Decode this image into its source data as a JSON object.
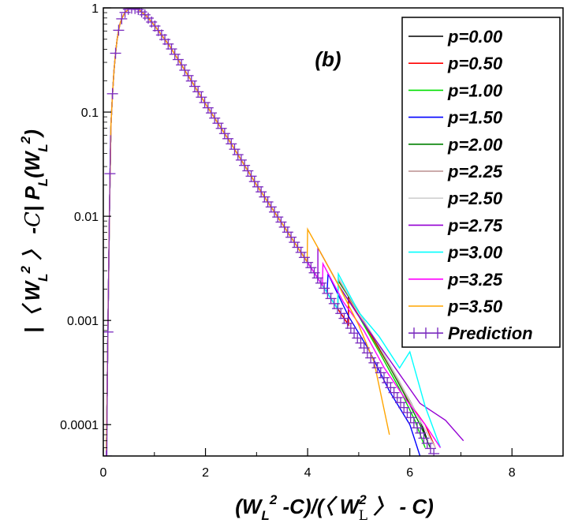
{
  "chart_data": {
    "type": "line",
    "panel_label": "(b)",
    "xlim": [
      0,
      9
    ],
    "ylim": [
      5e-05,
      1
    ],
    "yscale": "log",
    "x_ticks": [
      0,
      2,
      4,
      6,
      8
    ],
    "x_tick_labels": [
      "0",
      "2",
      "4",
      "6",
      "8"
    ],
    "y_ticks": [
      0.0001,
      0.001,
      0.01,
      0.1,
      1
    ],
    "y_tick_labels": [
      "0.0001",
      "0.001",
      "0.01",
      "0.1",
      "1"
    ],
    "legend_position": "top-right",
    "series": [
      {
        "name": "p=0.00",
        "color": "#000000",
        "tail_x": [
          4.8,
          5.2,
          5.6,
          6.0,
          6.2,
          6.35
        ],
        "tail_y": [
          0.0018,
          0.00082,
          0.00038,
          0.00017,
          0.00011,
          7e-05
        ]
      },
      {
        "name": "p=0.50",
        "color": "#ff0000",
        "tail_x": [
          4.8,
          5.2,
          5.6,
          6.0,
          6.3,
          6.5
        ],
        "tail_y": [
          0.0016,
          0.00078,
          0.00036,
          0.00016,
          0.0001,
          6e-05
        ]
      },
      {
        "name": "p=1.00",
        "color": "#00e000",
        "tail_x": [
          4.6,
          5.0,
          5.4,
          5.8,
          6.1,
          6.3
        ],
        "tail_y": [
          0.0022,
          0.0011,
          0.0005,
          0.00022,
          0.00011,
          6e-05
        ]
      },
      {
        "name": "p=1.50",
        "color": "#0000ff",
        "tail_x": [
          4.4,
          4.8,
          5.2,
          5.6,
          6.0,
          6.2
        ],
        "tail_y": [
          0.0028,
          0.0011,
          0.00052,
          0.00021,
          0.0001,
          5e-05
        ]
      },
      {
        "name": "p=2.00",
        "color": "#008000",
        "tail_x": [
          4.6,
          5.0,
          5.4,
          5.8,
          6.2,
          6.4
        ],
        "tail_y": [
          0.0024,
          0.0012,
          0.00055,
          0.00024,
          0.0001,
          6e-05
        ]
      },
      {
        "name": "p=2.25",
        "color": "#bc8f8f",
        "tail_x": [
          4.6,
          5.0,
          5.4,
          5.8,
          6.2,
          6.5
        ],
        "tail_y": [
          0.0025,
          0.0012,
          0.00056,
          0.00025,
          0.00011,
          6e-05
        ]
      },
      {
        "name": "p=2.50",
        "color": "#d0d0d0",
        "tail_x": [
          4.6,
          5.0,
          5.4,
          5.8,
          6.2,
          6.5
        ],
        "tail_y": [
          0.0026,
          0.0012,
          0.00057,
          0.00026,
          0.00011,
          6e-05
        ]
      },
      {
        "name": "p=2.75",
        "color": "#9400d3",
        "tail_x": [
          4.2,
          4.6,
          5.0,
          5.6,
          6.2,
          6.7,
          7.05
        ],
        "tail_y": [
          0.005,
          0.0022,
          0.0011,
          0.00042,
          0.00016,
          0.00011,
          7e-05
        ]
      },
      {
        "name": "p=3.00",
        "color": "#00ffff",
        "tail_x": [
          4.6,
          5.0,
          5.4,
          5.8,
          6.0,
          6.3,
          6.6
        ],
        "tail_y": [
          0.0028,
          0.0012,
          0.0007,
          0.00035,
          0.0005,
          0.00015,
          6e-05
        ]
      },
      {
        "name": "p=3.25",
        "color": "#ff00ff",
        "tail_x": [
          4.3,
          4.7,
          5.1,
          5.5,
          5.9,
          6.3,
          6.6
        ],
        "tail_y": [
          0.0035,
          0.0015,
          0.0008,
          0.00035,
          0.00018,
          0.0001,
          6e-05
        ]
      },
      {
        "name": "p=3.50",
        "color": "#ffa500",
        "tail_x": [
          4.0,
          4.2,
          4.6,
          5.0,
          5.3,
          5.6
        ],
        "tail_y": [
          0.0075,
          0.005,
          0.0022,
          0.0009,
          0.0004,
          8e-05
        ]
      },
      {
        "name": "Prediction",
        "color": "#7b2cbf",
        "marker": "plus"
      }
    ]
  }
}
